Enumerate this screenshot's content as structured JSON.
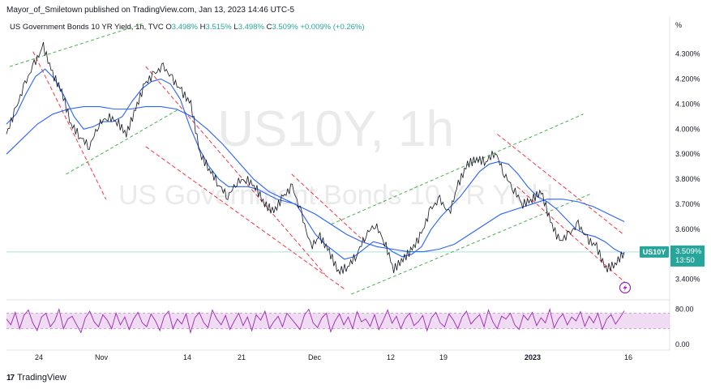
{
  "header": {
    "published": "Mayor_of_Smiletown published on TradingView.com, Jan 13, 2023 14:46 UTC-5"
  },
  "legend": {
    "title": "US Government Bonds 10 YR Yield, 1h, TVC",
    "o_label": "O",
    "o_value": "3.498%",
    "h_label": "H",
    "h_value": "3.515%",
    "l_label": "L",
    "l_value": "3.498%",
    "c_label": "C",
    "c_value": "3.509%",
    "change": "+0.009% (+0.26%)"
  },
  "watermark": {
    "symbol": "US10Y, 1h",
    "name": "US Government Bonds 10 YR Yield"
  },
  "price_badge": {
    "symbol": "US10Y",
    "price": "3.509%",
    "countdown": "13:50"
  },
  "footer": {
    "logo_mark": "17",
    "logo_text": "TradingView"
  },
  "colors": {
    "price_line": "#131722",
    "ma_fast": "#2962ff",
    "ma_slow": "#2962ff",
    "channel_green": "#4caf50",
    "channel_red": "#f23645",
    "rsi": "#9c27b0",
    "rsi_band": "#e1bee7",
    "badge_green": "#26a69a"
  },
  "chart_data": {
    "type": "line",
    "y_unit": "%",
    "y_ticks": [
      "4.300%",
      "4.200%",
      "4.100%",
      "4.000%",
      "3.900%",
      "3.800%",
      "3.700%",
      "3.600%",
      "3.500%",
      "3.400%"
    ],
    "ylim": [
      3.35,
      4.38
    ],
    "x_ticks": [
      "24",
      "Nov",
      "14",
      "21",
      "Dec",
      "12",
      "19",
      "2023",
      "16"
    ],
    "series": [
      {
        "values": [
          3.98,
          4.08,
          4.18,
          4.26,
          4.33,
          4.22,
          4.15,
          4.02,
          3.97,
          3.93,
          4.02,
          4.05,
          4.03,
          3.98,
          4.08,
          4.18,
          4.22,
          4.25,
          4.2,
          4.15,
          4.1,
          3.9,
          3.84,
          3.78,
          3.73,
          3.79,
          3.8,
          3.77,
          3.7,
          3.67,
          3.73,
          3.77,
          3.66,
          3.53,
          3.57,
          3.51,
          3.43,
          3.45,
          3.5,
          3.58,
          3.62,
          3.55,
          3.44,
          3.48,
          3.52,
          3.58,
          3.68,
          3.72,
          3.66,
          3.78,
          3.86,
          3.88,
          3.87,
          3.91,
          3.82,
          3.76,
          3.7,
          3.72,
          3.75,
          3.63,
          3.55,
          3.58,
          3.62,
          3.56,
          3.53,
          3.44,
          3.46,
          3.509
        ]
      }
    ],
    "ma_fast": [
      4.02,
      4.06,
      4.14,
      4.21,
      4.24,
      4.2,
      4.13,
      4.05,
      4.0,
      4.01,
      4.03,
      4.03,
      4.05,
      4.11,
      4.16,
      4.19,
      4.2,
      4.18,
      4.12,
      4.01,
      3.92,
      3.85,
      3.8,
      3.77,
      3.77,
      3.77,
      3.76,
      3.74,
      3.72,
      3.71,
      3.7,
      3.64,
      3.58,
      3.54,
      3.51,
      3.48,
      3.49,
      3.52,
      3.55,
      3.54,
      3.51,
      3.49,
      3.5,
      3.53,
      3.6,
      3.65,
      3.69,
      3.73,
      3.78,
      3.83,
      3.86,
      3.87,
      3.86,
      3.82,
      3.77,
      3.73,
      3.71,
      3.68,
      3.64,
      3.6,
      3.58,
      3.57,
      3.55,
      3.52,
      3.5
    ],
    "ma_slow": [
      3.9,
      3.96,
      4.02,
      4.06,
      4.08,
      4.09,
      4.09,
      4.08,
      4.08,
      4.09,
      4.09,
      4.08,
      4.05,
      4.0,
      3.94,
      3.87,
      3.8,
      3.75,
      3.72,
      3.69,
      3.66,
      3.62,
      3.58,
      3.55,
      3.53,
      3.52,
      3.51,
      3.51,
      3.52,
      3.54,
      3.58,
      3.62,
      3.66,
      3.68,
      3.7,
      3.72,
      3.72,
      3.71,
      3.69,
      3.66,
      3.63
    ],
    "channels": [
      {
        "color": "green",
        "from": [
          0.005,
          4.25
        ],
        "to": [
          0.205,
          4.42
        ]
      },
      {
        "color": "green",
        "from": [
          0.09,
          3.82
        ],
        "to": [
          0.26,
          4.08
        ]
      },
      {
        "color": "red",
        "from": [
          0.04,
          4.31
        ],
        "to": [
          0.15,
          3.72
        ]
      },
      {
        "color": "red",
        "from": [
          0.21,
          4.25
        ],
        "to": [
          0.48,
          3.42
        ]
      },
      {
        "color": "red",
        "from": [
          0.21,
          3.93
        ],
        "to": [
          0.51,
          3.36
        ]
      },
      {
        "color": "red",
        "from": [
          0.43,
          3.82
        ],
        "to": [
          0.54,
          3.55
        ]
      },
      {
        "color": "green",
        "from": [
          0.49,
          3.62
        ],
        "to": [
          0.87,
          4.06
        ]
      },
      {
        "color": "green",
        "from": [
          0.52,
          3.34
        ],
        "to": [
          0.88,
          3.74
        ]
      },
      {
        "color": "red",
        "from": [
          0.74,
          3.98
        ],
        "to": [
          0.93,
          3.58
        ]
      },
      {
        "color": "red",
        "from": [
          0.77,
          3.77
        ],
        "to": [
          0.94,
          3.37
        ]
      }
    ],
    "rsi": {
      "ticks": [
        "80.00",
        "0.00"
      ],
      "band": [
        30,
        70
      ],
      "values": [
        55,
        40,
        72,
        30,
        65,
        78,
        45,
        25,
        60,
        70,
        35,
        50,
        80,
        30,
        55,
        62,
        40,
        20,
        58,
        75,
        48,
        35,
        66,
        52,
        30,
        70,
        40,
        60,
        28,
        55,
        72,
        45,
        35,
        68,
        50,
        25,
        62,
        75,
        30,
        55,
        42,
        68,
        20,
        58,
        72,
        46,
        33,
        78,
        55,
        40,
        64,
        28,
        50,
        70,
        38,
        60,
        25,
        66,
        52,
        75,
        30,
        48,
        62,
        35,
        70,
        56,
        42,
        28,
        65,
        80,
        45,
        33,
        58,
        70,
        22,
        50,
        68,
        40,
        60,
        30,
        74,
        48,
        55,
        36,
        66,
        28,
        52,
        78,
        44,
        62,
        30,
        56,
        70,
        38,
        48,
        64,
        25,
        58,
        72,
        45,
        35,
        68,
        52,
        30,
        60,
        75,
        42,
        55,
        66,
        35,
        78,
        48,
        30,
        62,
        55,
        70,
        40,
        28,
        65,
        52,
        72,
        38,
        58,
        45,
        80,
        32,
        55,
        68,
        40,
        60,
        50,
        74,
        36,
        62,
        45,
        70,
        28,
        55,
        66,
        42,
        58,
        76
      ]
    }
  }
}
